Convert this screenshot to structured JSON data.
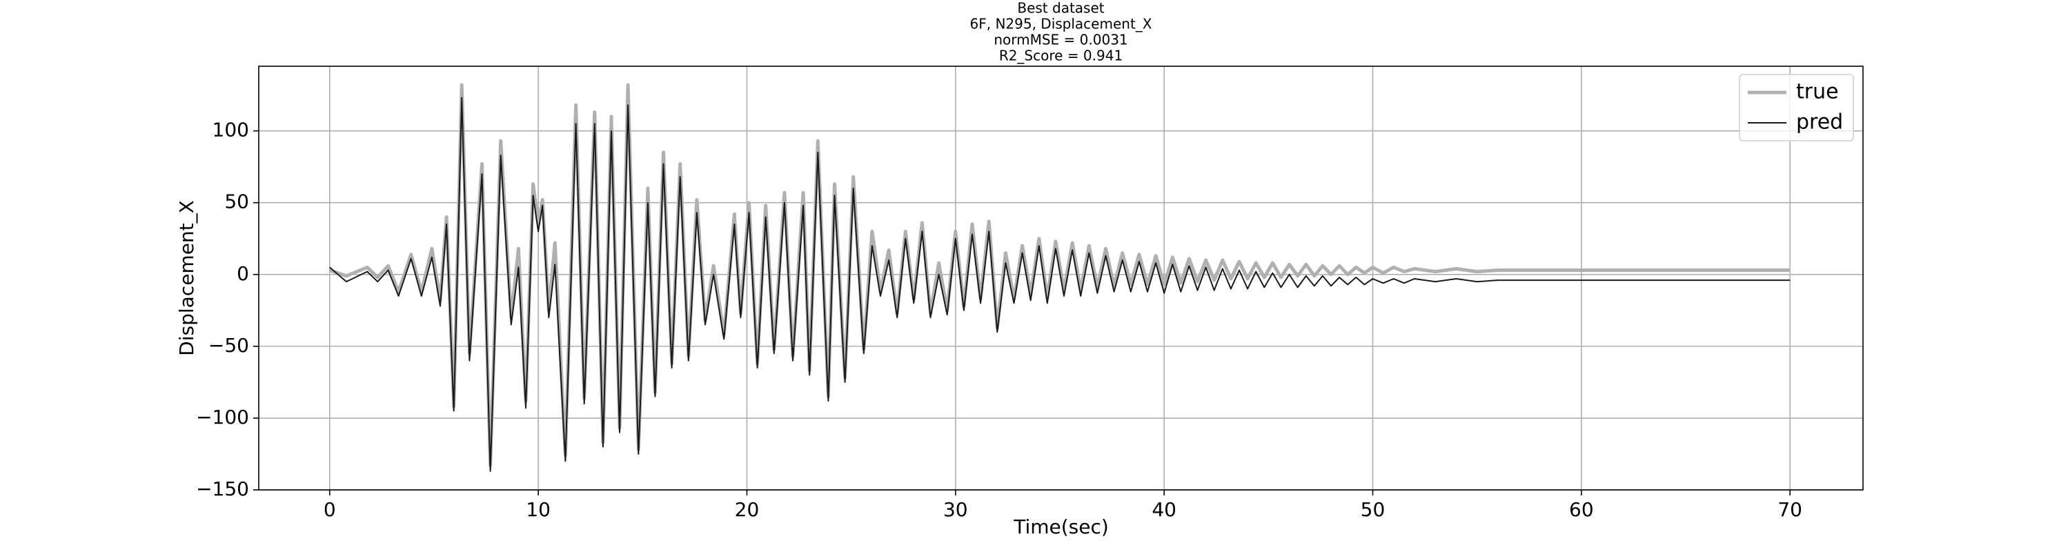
{
  "chart_data": {
    "type": "line",
    "title": [
      "Best dataset",
      "6F, N295, Displacement_X",
      "normMSE = 0.0031",
      "R2_Score = 0.941"
    ],
    "xlabel": "Time(sec)",
    "ylabel": "Displacement_X",
    "xlim": [
      -3.4,
      73.5
    ],
    "ylim": [
      -150,
      145
    ],
    "xticks": [
      0,
      10,
      20,
      30,
      40,
      50,
      60,
      70
    ],
    "yticks": [
      {
        "value": -150,
        "label": "−150"
      },
      {
        "value": -100,
        "label": "−100"
      },
      {
        "value": -50,
        "label": "−50"
      },
      0,
      50,
      100
    ],
    "grid": true,
    "legend": "upper right",
    "x": [
      0,
      0.8,
      1.8,
      2.3,
      2.8,
      3.3,
      3.9,
      4.4,
      4.9,
      5.3,
      5.6,
      5.95,
      6.33,
      6.7,
      7.3,
      7.7,
      8.2,
      8.7,
      9.05,
      9.4,
      9.75,
      10.0,
      10.2,
      10.5,
      10.8,
      11.3,
      11.8,
      12.2,
      12.7,
      13.1,
      13.5,
      13.9,
      14.3,
      14.8,
      15.25,
      15.6,
      16.0,
      16.4,
      16.8,
      17.2,
      17.6,
      18.0,
      18.4,
      18.9,
      19.4,
      19.7,
      20.1,
      20.5,
      20.9,
      21.3,
      21.8,
      22.2,
      22.7,
      23.0,
      23.4,
      23.9,
      24.2,
      24.7,
      25.1,
      25.6,
      26.0,
      26.4,
      26.8,
      27.2,
      27.6,
      28.0,
      28.4,
      28.8,
      29.2,
      29.6,
      30.0,
      30.4,
      30.8,
      31.2,
      31.6,
      32.0,
      32.4,
      32.8,
      33.2,
      33.6,
      34.0,
      34.4,
      34.8,
      35.2,
      35.6,
      36.0,
      36.4,
      36.8,
      37.2,
      37.6,
      38.0,
      38.4,
      38.8,
      39.2,
      39.6,
      40.0,
      40.4,
      40.8,
      41.2,
      41.6,
      42.0,
      42.4,
      42.8,
      43.2,
      43.6,
      44.0,
      44.4,
      44.8,
      45.2,
      45.6,
      46.0,
      46.4,
      46.8,
      47.2,
      47.6,
      48.0,
      48.4,
      48.8,
      49.2,
      49.6,
      50.0,
      50.5,
      51,
      51.5,
      52,
      53,
      54,
      55,
      56,
      58,
      60,
      65,
      70
    ],
    "series": [
      {
        "name": "true",
        "color": "#b0b0b0",
        "width": 5,
        "values": [
          3,
          -1,
          5,
          -2,
          6,
          -12,
          14,
          -12,
          18,
          -18,
          40,
          -92,
          132,
          -55,
          77,
          -133,
          93,
          -30,
          18,
          -88,
          63,
          35,
          52,
          -25,
          22,
          -126,
          118,
          -86,
          113,
          -117,
          110,
          -107,
          132,
          -122,
          60,
          -82,
          85,
          -62,
          77,
          -57,
          52,
          -32,
          6,
          -42,
          42,
          -27,
          50,
          -62,
          48,
          -52,
          57,
          -57,
          57,
          -67,
          93,
          -85,
          63,
          -72,
          68,
          -52,
          30,
          -12,
          17,
          -27,
          30,
          -17,
          36,
          -27,
          8,
          -25,
          30,
          -22,
          35,
          -17,
          37,
          -37,
          15,
          -17,
          20,
          -14,
          25,
          -16,
          23,
          -11,
          22,
          -11,
          20,
          -9,
          18,
          -8,
          15,
          -7,
          14,
          -7,
          13,
          -7,
          12,
          -6,
          11,
          -5,
          10,
          -4,
          10,
          -3,
          9,
          -3,
          8,
          -2,
          8,
          -2,
          7,
          -1,
          7,
          -1,
          6,
          0,
          6,
          0,
          5,
          1,
          5,
          1,
          5,
          2,
          4,
          2,
          4,
          2,
          3,
          3,
          3,
          3,
          3
        ]
      },
      {
        "name": "pred",
        "color": "#1a1a1a",
        "width": 2,
        "values": [
          5,
          -5,
          2,
          -5,
          3,
          -15,
          11,
          -15,
          12,
          -22,
          35,
          -95,
          123,
          -60,
          70,
          -137,
          83,
          -35,
          5,
          -93,
          55,
          30,
          48,
          -30,
          7,
          -130,
          105,
          -90,
          105,
          -120,
          100,
          -110,
          118,
          -125,
          50,
          -85,
          77,
          -65,
          68,
          -60,
          43,
          -35,
          0,
          -45,
          35,
          -30,
          43,
          -65,
          40,
          -55,
          50,
          -60,
          48,
          -70,
          85,
          -88,
          55,
          -75,
          60,
          -55,
          20,
          -15,
          10,
          -30,
          25,
          -20,
          30,
          -30,
          0,
          -28,
          25,
          -25,
          28,
          -20,
          30,
          -40,
          8,
          -20,
          15,
          -18,
          20,
          -20,
          18,
          -15,
          17,
          -15,
          15,
          -13,
          13,
          -12,
          10,
          -12,
          9,
          -12,
          8,
          -13,
          7,
          -12,
          6,
          -11,
          5,
          -11,
          4,
          -10,
          3,
          -10,
          2,
          -9,
          1,
          -9,
          0,
          -9,
          -1,
          -8,
          -1,
          -8,
          -2,
          -7,
          -2,
          -7,
          -3,
          -6,
          -3,
          -6,
          -3,
          -5,
          -3,
          -5,
          -4,
          -4,
          -4,
          -4,
          -4
        ]
      }
    ]
  }
}
